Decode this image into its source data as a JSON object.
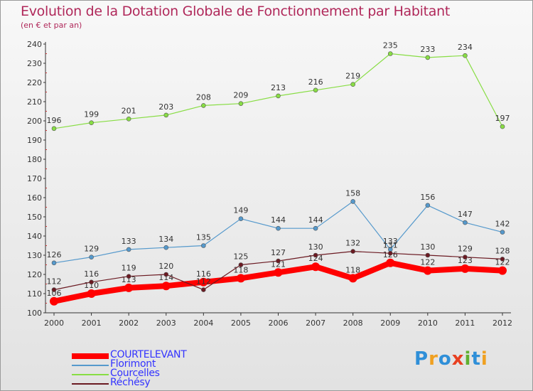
{
  "title": "Evolution de la Dotation Globale de Fonctionnement par Habitant",
  "subtitle": "(en € et par an)",
  "logo": [
    "P",
    "r",
    "o",
    "x",
    "i",
    "t",
    "i"
  ],
  "logo_colors": [
    "#2f8fd8",
    "#f0a020",
    "#2f8fd8",
    "#e84020",
    "#60b030",
    "#2f8fd8",
    "#f0a020"
  ],
  "chart_data": {
    "type": "line",
    "x": [
      2000,
      2001,
      2002,
      2003,
      2004,
      2005,
      2006,
      2007,
      2008,
      2009,
      2010,
      2011,
      2012
    ],
    "ylim": [
      100,
      240
    ],
    "yticks": [
      100,
      110,
      120,
      130,
      140,
      150,
      160,
      170,
      180,
      190,
      200,
      210,
      220,
      230,
      240
    ],
    "grid": false,
    "legend": "bottom-left",
    "series": [
      {
        "name": "COURTELEVANT",
        "color": "#ff0000",
        "label_color": "#3333ff",
        "width": 8,
        "values": [
          106,
          110,
          113,
          114,
          116,
          118,
          121,
          124,
          118,
          126,
          122,
          123,
          122
        ]
      },
      {
        "name": "Florimont",
        "color": "#5599cc",
        "label_color": "#3333ff",
        "width": 1.2,
        "values": [
          126,
          129,
          133,
          134,
          135,
          149,
          144,
          144,
          158,
          133,
          156,
          147,
          142
        ]
      },
      {
        "name": "Courcelles",
        "color": "#88dd44",
        "label_color": "#3333ff",
        "width": 1.2,
        "values": [
          196,
          199,
          201,
          203,
          208,
          209,
          213,
          216,
          219,
          235,
          233,
          234,
          197
        ]
      },
      {
        "name": "Réchésy",
        "color": "#6b1a22",
        "label_color": "#3333ff",
        "width": 1.2,
        "values": [
          112,
          116,
          119,
          120,
          112,
          125,
          127,
          130,
          132,
          131,
          130,
          129,
          128
        ]
      }
    ]
  }
}
